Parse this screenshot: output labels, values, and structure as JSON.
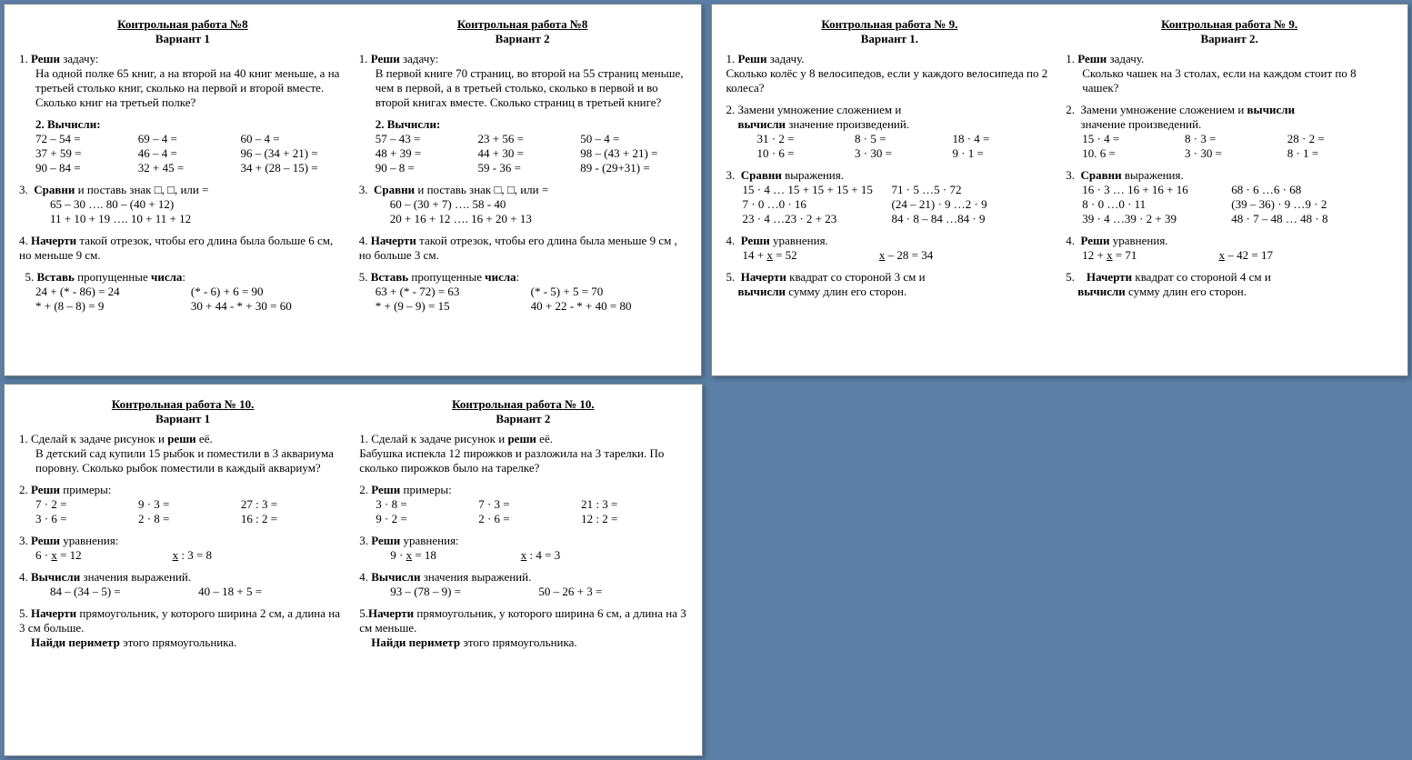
{
  "background_color": "#5b7fa6",
  "page_bg": "#ffffff",
  "font": "Times New Roman",
  "fontsize_pt": 10,
  "slides": {
    "kr8": {
      "v1": {
        "title": "Контрольная работа №8",
        "sub": "Вариант 1",
        "t1_lead": "Реши",
        "t1_rest": " задачу:",
        "t1_body": "На одной полке 65 книг, а на второй на 40 книг меньше, а на третьей столько книг, сколько на первой и второй вместе. Сколько книг на третьей полке?",
        "t2_lead": "Вычисли:",
        "t2_r1a": "72 – 54 =",
        "t2_r1b": "69 – 4 =",
        "t2_r1c": "60 – 4 =",
        "t2_r2a": "37 + 59 =",
        "t2_r2b": "46 – 4 =",
        "t2_r2c": "96 – (34 + 21) =",
        "t2_r3a": "90 – 84 =",
        "t2_r3b": "32 + 45 =",
        "t2_r3c": "34 + (28 – 15) =",
        "t3_lead": "Сравни",
        "t3_rest": " и поставь знак □, □, или =",
        "t3_l1": "65 – 30 …. 80 – (40 + 12)",
        "t3_l2": "11 + 10 + 19 …. 10 + 11 + 12",
        "t4_lead": "Начерти",
        "t4_rest": " такой отрезок, чтобы его длина была больше 6 см, но меньше 9 см.",
        "t5_a": "Вставь",
        "t5_b": " пропущенные ",
        "t5_c": "числа",
        "t5_l1a": "24 + (* - 86) = 24",
        "t5_l1b": "(* - 6) + 6 = 90",
        "t5_l2a": "* + (8 – 8) = 9",
        "t5_l2b": "30 + 44 - * + 30 = 60"
      },
      "v2": {
        "title": "Контрольная работа №8",
        "sub": "Вариант 2",
        "t1_lead": "Реши",
        "t1_rest": " задачу:",
        "t1_body": "В первой книге 70 страниц, во второй на 55 страниц меньше, чем в первой, а в третьей столько, сколько в первой и во второй книгах вместе. Сколько страниц в третьей книге?",
        "t2_lead": "Вычисли:",
        "t2_r1a": "57 – 43 =",
        "t2_r1b": "23 + 56 =",
        "t2_r1c": "50 – 4 =",
        "t2_r2a": "48 + 39 =",
        "t2_r2b": "44 + 30 =",
        "t2_r2c": "98 – (43 + 21) =",
        "t2_r3a": "90 – 8 =",
        "t2_r3b": "59 - 36 =",
        "t2_r3c": "89 - (29+31) =",
        "t3_lead": "Сравни",
        "t3_rest": " и поставь знак □, □, или =",
        "t3_l1": "60 – (30 + 7) …. 58 - 40",
        "t3_l2": "20 + 16 + 12 …. 16 + 20 + 13",
        "t4_lead": "Начерти",
        "t4_rest": " такой отрезок, чтобы его длина была меньше 9 см , но больше 3 см.",
        "t5_a": "Вставь",
        "t5_b": " пропущенные ",
        "t5_c": "числа",
        "t5_l1a": "63 + (* - 72) = 63",
        "t5_l1b": "(* - 5) + 5 = 70",
        "t5_l2a": "* + (9 – 9) = 15",
        "t5_l2b": "40 + 22 - * + 40 = 80"
      }
    },
    "kr9": {
      "v1": {
        "title": "Контрольная работа № 9.",
        "sub": "Вариант 1.",
        "t1_lead": "Реши",
        "t1_rest": " задачу.",
        "t1_body": " Сколько колёс у 8 велосипедов, если у каждого велосипеда по 2 колеса?",
        "t2_a": "Замени умножение сложением и ",
        "t2_b": "вычисли",
        "t2_c": " значение произведений.",
        "t2_r1a": "31 · 2 =",
        "t2_r1b": "8 · 5 =",
        "t2_r1c": "18 · 4 =",
        "t2_r2a": "10 · 6 =",
        "t2_r2b": "3 · 30 =",
        "t2_r2c": "9 · 1 =",
        "t3_lead": "Сравни",
        "t3_rest": " выражения.",
        "t3_l1a": "15 · 4 … 15 + 15 + 15 + 15",
        "t3_l1b": "71 · 5 …5 · 72",
        "t3_l2a": "7 · 0 …0 · 16",
        "t3_l2b": "(24 – 21) · 9 …2 · 9",
        "t3_l3a": "23 · 4 …23 · 2 + 23",
        "t3_l3b": "84 · 8 – 84 …84 · 9",
        "t4_lead": "Реши",
        "t4_rest": " уравнения.",
        "t4_a": "14 + x = 52",
        "t4_b": "x – 28 = 34",
        "t5_lead": "Начерти",
        "t5_mid": " квадрат со стороной 3 см и ",
        "t5_b2": "вычисли",
        "t5_c2": "  сумму длин его сторон."
      },
      "v2": {
        "title": "Контрольная работа № 9.",
        "sub": "Вариант 2",
        "t1_lead": "Реши",
        "t1_rest": " задачу.",
        "t1_body": "Сколько чашек на 3 столах, если на каждом стоит по 8 чашек?",
        "t2_a": "Замени умножение сложением и ",
        "t2_b": "вычисли",
        "t2_c": " значение произведений.",
        "t2_r1a": "15 · 4 =",
        "t2_r1b": "8 · 3 =",
        "t2_r1c": "28 · 2 =",
        "t2_r2a": "10. 6 =",
        "t2_r2b": "3 · 30 =",
        "t2_r2c": "8 · 1 =",
        "t3_lead": "Сравни",
        "t3_rest": " выражения.",
        "t3_l1a": "16 · 3 … 16 + 16 + 16",
        "t3_l1b": "68 · 6 …6 · 68",
        "t3_l2a": "8 · 0 …0 · 11",
        "t3_l2b": "(39 – 36) · 9 …9 · 2",
        "t3_l3a": "39 · 4 …39 · 2 + 39",
        "t3_l3b": "48 · 7 – 48 … 48 · 8",
        "t4_lead": "Реши",
        "t4_rest": " уравнения.",
        "t4_a": "12 + x = 71",
        "t4_b": "x – 42 = 17",
        "t5_lead": "Начерти",
        "t5_mid": " квадрат со стороной 4 см и ",
        "t5_b2": "вычисли",
        "t5_c2": "    сумму длин его сторон."
      }
    },
    "kr10": {
      "v1": {
        "title": "Контрольная работа № 10.",
        "sub": "Вариант 1",
        "t1_a": "Сделай к задаче рисунок и ",
        "t1_b": "реши",
        "t1_c": " её.",
        "t1_body": "В детский сад купили 15 рыбок и поместили в 3 аквариума поровну. Сколько рыбок поместили в каждый аквариум?",
        "t2_lead": "Реши",
        "t2_rest": " примеры:",
        "t2_r1a": "7 · 2 =",
        "t2_r1b": "9 · 3 =",
        "t2_r1c": "27 : 3 =",
        "t2_r2a": "3 · 6 =",
        "t2_r2b": "2 · 8 =",
        "t2_r2c": "16 : 2 =",
        "t3_lead": "Реши",
        "t3_rest": " уравнения:",
        "t3_a": "6 · x = 12",
        "t3_b": "x : 3 = 8",
        "t4_lead": "Вычисли",
        "t4_rest": " значения выражений.",
        "t4_a": "84 – (34 – 5) =",
        "t4_b": "40 – 18 + 5 =",
        "t5_lead": "Начерти",
        "t5_mid": " прямоугольник, у которого ширина  2 см, а длина на 3 см больше. ",
        "t5_b2": "Найди  периметр",
        "t5_c2": " этого прямоугольника."
      },
      "v2": {
        "title": "Контрольная работа № 10.",
        "sub": "Вариант 2",
        "t1_a": "Сделай к задаче рисунок и ",
        "t1_b": "реши",
        "t1_c": " её.",
        "t1_body": "Бабушка испекла 12 пирожков и разложила на 3 тарелки. По сколько пирожков было на тарелке?",
        "t2_lead": "Реши",
        "t2_rest": " примеры:",
        "t2_r1a": "3 · 8 =",
        "t2_r1b": "7 · 3 =",
        "t2_r1c": "21 : 3 =",
        "t2_r2a": "9 · 2 =",
        "t2_r2b": "2 · 6 =",
        "t2_r2c": "12 : 2 =",
        "t3_lead": "Реши",
        "t3_rest": " уравнения:",
        "t3_a": "9 · x = 18",
        "t3_b": "x : 4 = 3",
        "t4_lead": "Вычисли",
        "t4_rest": " значения выражений.",
        "t4_a": "93 – (78 – 9) =",
        "t4_b": "50 – 26 + 3 =",
        "t5_lead": "Начерти",
        "t5_mid": " прямоугольник, у которого ширина 6 см, а длина на 3 см меньше. ",
        "t5_b2": "Найди  периметр",
        "t5_c2": "  этого прямоугольника."
      }
    }
  }
}
